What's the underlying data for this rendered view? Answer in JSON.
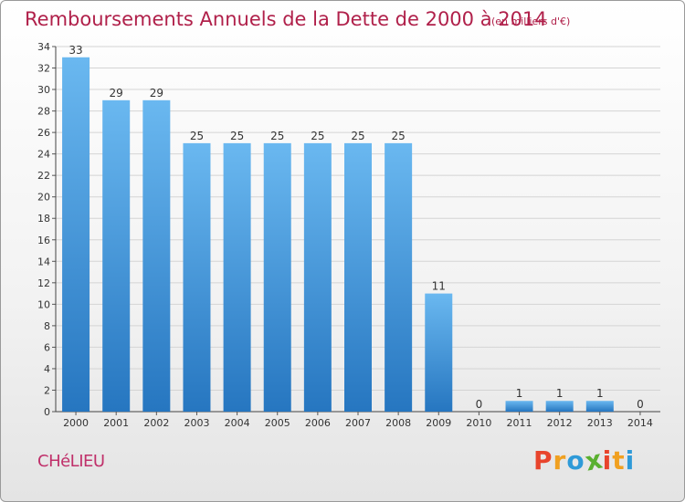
{
  "chart_data": {
    "type": "bar",
    "title": "Remboursements Annuels de la Dette de 2000 à 2014",
    "unit_label": "(en milliers d'€)",
    "categories": [
      "2000",
      "2001",
      "2002",
      "2003",
      "2004",
      "2005",
      "2006",
      "2007",
      "2008",
      "2009",
      "2010",
      "2011",
      "2012",
      "2013",
      "2014"
    ],
    "values": [
      33,
      29,
      29,
      25,
      25,
      25,
      25,
      25,
      25,
      11,
      0,
      1,
      1,
      1,
      0
    ],
    "yticks": [
      0,
      2,
      4,
      6,
      8,
      10,
      12,
      14,
      16,
      18,
      20,
      22,
      24,
      26,
      28,
      30,
      32,
      34
    ],
    "ylim": [
      0,
      34
    ],
    "xlabel": "",
    "ylabel": "",
    "grid": "horizontal"
  },
  "commune": "CHéLIEU",
  "logo": {
    "letters": [
      "P",
      "r",
      "o",
      "x",
      "i",
      "t",
      "i"
    ],
    "colors": [
      "#e8442c",
      "#f0a020",
      "#2e9ad8",
      "#5ab030",
      "#e8442c",
      "#f0a020",
      "#2e9ad8"
    ]
  },
  "colors": {
    "bar_light": "#6ab8f0",
    "bar_dark": "#2a7fc8",
    "title": "#b0204a"
  }
}
